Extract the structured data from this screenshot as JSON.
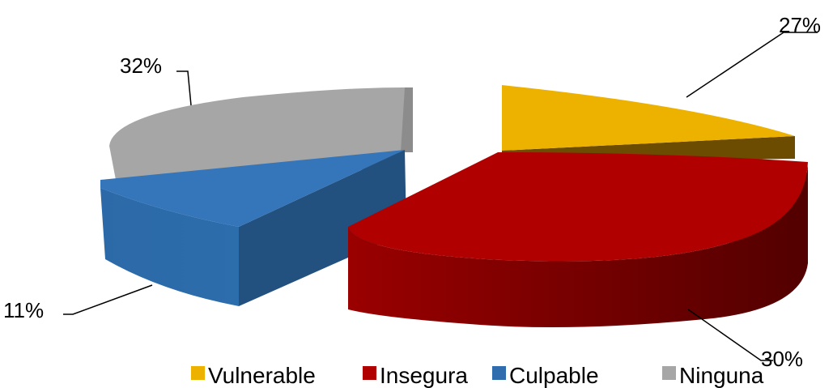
{
  "chart_data": {
    "type": "pie",
    "title": "",
    "style": "3d-exploded",
    "slices": [
      {
        "label": "Vulnerable",
        "value": 27,
        "display": "27%",
        "color": "#EDB100"
      },
      {
        "label": "Insegura",
        "value": 30,
        "display": "30%",
        "color": "#B00000"
      },
      {
        "label": "Culpable",
        "value": 11,
        "display": "11%",
        "color": "#2F6DAF"
      },
      {
        "label": "Ninguna",
        "value": 32,
        "display": "32%",
        "color": "#A6A6A6"
      }
    ],
    "legend_position": "bottom-right"
  }
}
